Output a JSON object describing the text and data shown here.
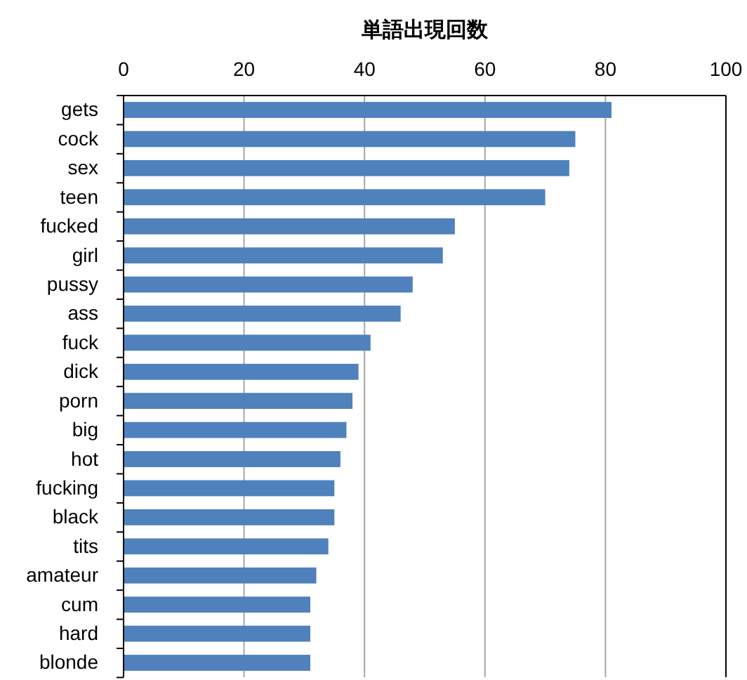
{
  "chart_data": {
    "type": "bar",
    "orientation": "horizontal",
    "xlabel": "単語出現回数",
    "categories": [
      "gets",
      "cock",
      "sex",
      "teen",
      "fucked",
      "girl",
      "pussy",
      "ass",
      "fuck",
      "dick",
      "porn",
      "big",
      "hot",
      "fucking",
      "black",
      "tits",
      "amateur",
      "cum",
      "hard",
      "blonde"
    ],
    "values": [
      81,
      75,
      74,
      70,
      55,
      53,
      48,
      46,
      41,
      39,
      38,
      37,
      36,
      35,
      35,
      34,
      32,
      31,
      31,
      31
    ],
    "color": "#4f81bd",
    "xlim": [
      0,
      100
    ],
    "xticks": [
      0,
      20,
      40,
      60,
      80,
      100
    ],
    "grid": "x"
  }
}
